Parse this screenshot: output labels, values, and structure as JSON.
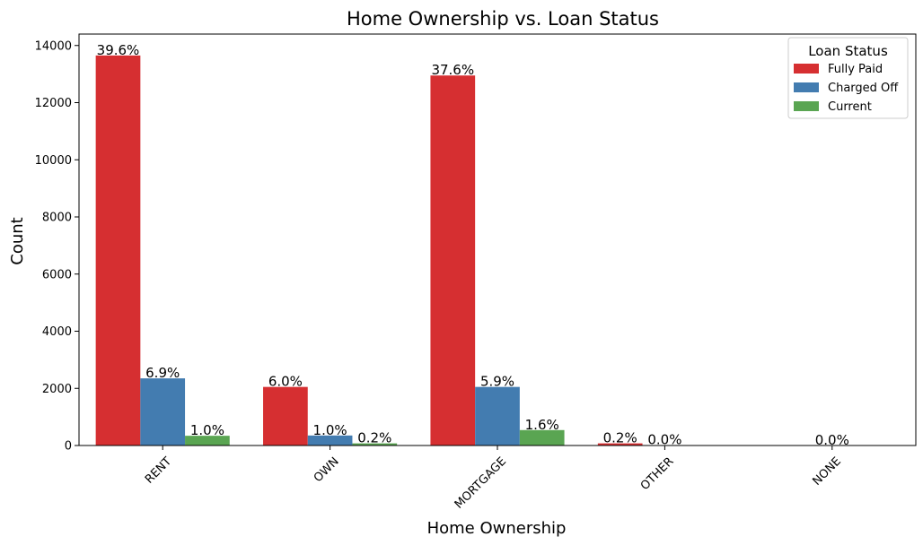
{
  "chart_data": {
    "type": "bar",
    "title": "Home Ownership vs. Loan Status",
    "xlabel": "Home Ownership",
    "ylabel": "Count",
    "categories": [
      "RENT",
      "OWN",
      "MORTGAGE",
      "OTHER",
      "NONE"
    ],
    "ylim": [
      0,
      14400
    ],
    "yticks": [
      0,
      2000,
      4000,
      6000,
      8000,
      10000,
      12000,
      14000
    ],
    "ytick_labels": [
      "0",
      "2000",
      "4000",
      "6000",
      "8000",
      "10000",
      "12000",
      "14000"
    ],
    "xtick_rotation": 45,
    "grid": false,
    "series": [
      {
        "name": "Fully Paid",
        "color": "#d62f31",
        "values": [
          13650,
          2050,
          12950,
          75,
          0
        ],
        "labels": [
          "39.6%",
          "6.0%",
          "37.6%",
          "0.2%",
          ""
        ]
      },
      {
        "name": "Charged Off",
        "color": "#437cb0",
        "values": [
          2350,
          350,
          2050,
          10,
          0
        ],
        "labels": [
          "6.9%",
          "1.0%",
          "5.9%",
          "0.0%",
          "0.0%"
        ]
      },
      {
        "name": "Current",
        "color": "#5aa552",
        "values": [
          340,
          75,
          540,
          0,
          0
        ],
        "labels": [
          "1.0%",
          "0.2%",
          "1.6%",
          "",
          ""
        ]
      }
    ],
    "legend": {
      "title": "Loan Status",
      "position": "top-right"
    }
  }
}
